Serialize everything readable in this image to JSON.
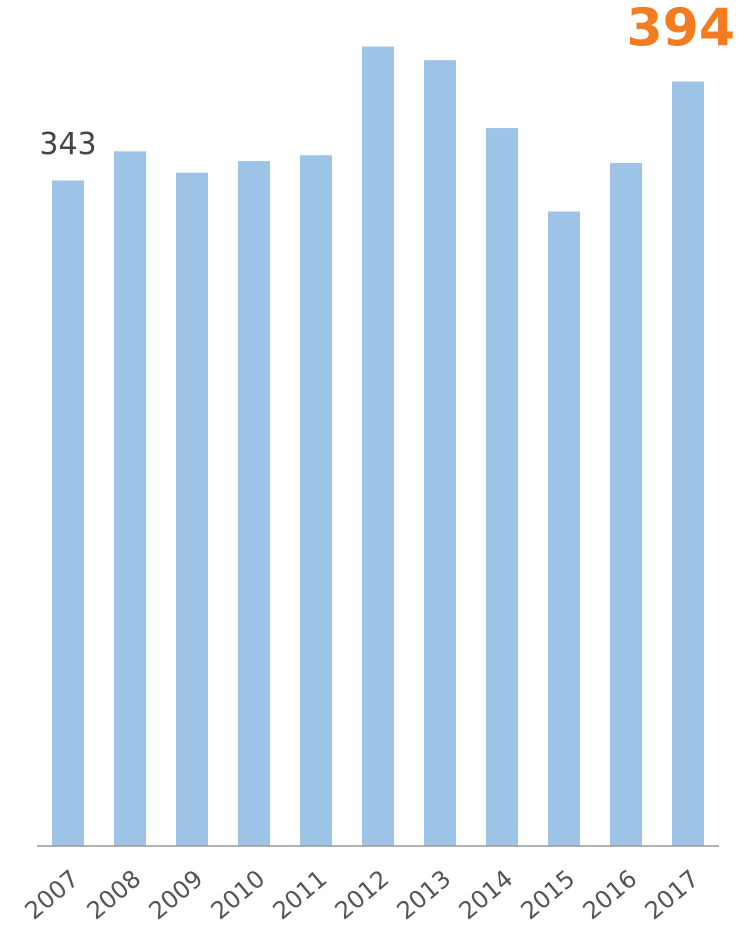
{
  "chart_data": {
    "type": "bar",
    "categories": [
      "2007",
      "2008",
      "2009",
      "2010",
      "2011",
      "2012",
      "2013",
      "2014",
      "2015",
      "2016",
      "2017"
    ],
    "values": [
      343,
      358,
      347,
      353,
      356,
      412,
      405,
      370,
      327,
      352,
      394
    ],
    "value_labels": [
      "343",
      null,
      null,
      null,
      null,
      null,
      null,
      null,
      null,
      null,
      "394"
    ],
    "value_label_colors": [
      "#444444",
      null,
      null,
      null,
      null,
      null,
      null,
      null,
      null,
      null,
      "#f47c20"
    ],
    "color": "#9dc3e6",
    "ylim": [
      0,
      436
    ]
  }
}
